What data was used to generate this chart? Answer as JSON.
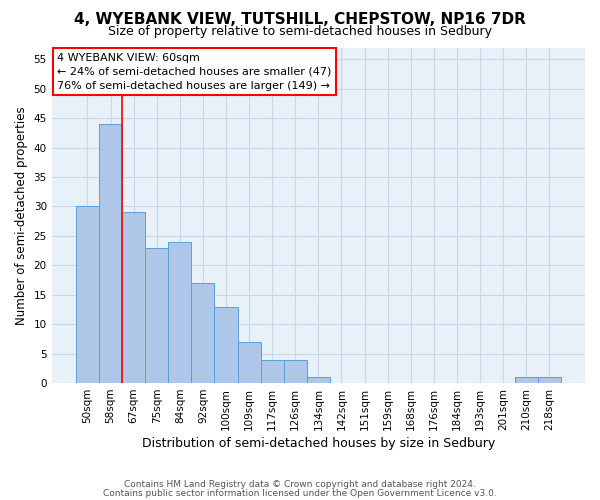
{
  "title": "4, WYEBANK VIEW, TUTSHILL, CHEPSTOW, NP16 7DR",
  "subtitle": "Size of property relative to semi-detached houses in Sedbury",
  "xlabel": "Distribution of semi-detached houses by size in Sedbury",
  "ylabel": "Number of semi-detached properties",
  "footnote1": "Contains HM Land Registry data © Crown copyright and database right 2024.",
  "footnote2": "Contains public sector information licensed under the Open Government Licence v3.0.",
  "bin_labels": [
    "50sqm",
    "58sqm",
    "67sqm",
    "75sqm",
    "84sqm",
    "92sqm",
    "100sqm",
    "109sqm",
    "117sqm",
    "126sqm",
    "134sqm",
    "142sqm",
    "151sqm",
    "159sqm",
    "168sqm",
    "176sqm",
    "184sqm",
    "193sqm",
    "201sqm",
    "210sqm",
    "218sqm"
  ],
  "values": [
    30,
    44,
    29,
    23,
    24,
    17,
    13,
    7,
    4,
    4,
    1,
    0,
    0,
    0,
    0,
    0,
    0,
    0,
    0,
    1,
    1
  ],
  "bar_color": "#aec6e8",
  "bar_edge_color": "#5a9fd4",
  "annotation_text": "4 WYEBANK VIEW: 60sqm\n← 24% of semi-detached houses are smaller (47)\n76% of semi-detached houses are larger (149) →",
  "red_line_x": 1.5,
  "ylim": [
    0,
    57
  ],
  "yticks": [
    0,
    5,
    10,
    15,
    20,
    25,
    30,
    35,
    40,
    45,
    50,
    55
  ],
  "background_color": "#e8f0f8",
  "grid_color": "#c8d8ec",
  "title_fontsize": 11,
  "subtitle_fontsize": 9,
  "annotation_fontsize": 8,
  "tick_fontsize": 7.5,
  "ylabel_fontsize": 8.5,
  "xlabel_fontsize": 9
}
